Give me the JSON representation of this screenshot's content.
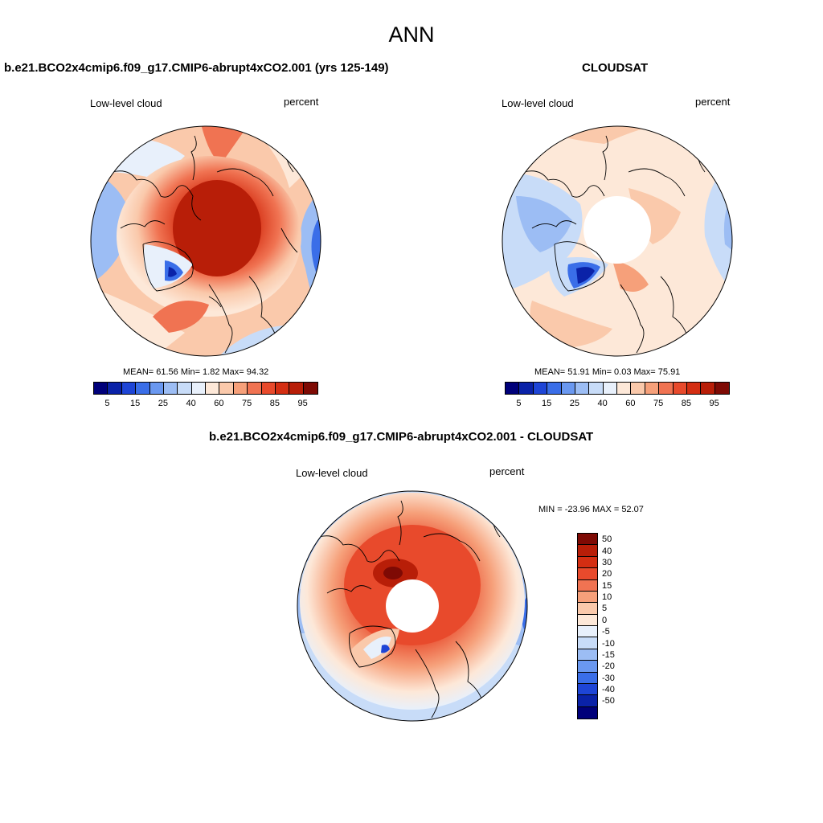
{
  "figure": {
    "title": "ANN"
  },
  "panels": [
    {
      "title": "b.e21.BCO2x4cmip6.f09_g17.CMIP6-abrupt4xCO2.001 (yrs 125-149)",
      "left_label": "Low-level cloud",
      "right_label": "percent",
      "stats": "MEAN=  61.56  Min=   1.82  Max=  94.32",
      "mean": 61.56,
      "min": 1.82,
      "max": 94.32
    },
    {
      "title": "CLOUDSAT",
      "left_label": "Low-level cloud",
      "right_label": "percent",
      "stats": "MEAN=  51.91  Min=   0.03  Max=  75.91",
      "mean": 51.91,
      "min": 0.03,
      "max": 75.91
    },
    {
      "title": "b.e21.BCO2x4cmip6.f09_g17.CMIP6-abrupt4xCO2.001 - CLOUDSAT",
      "left_label": "Low-level cloud",
      "right_label": "percent",
      "stats": "MIN = -23.96 MAX =  52.07",
      "min": -23.96,
      "max": 52.07
    }
  ],
  "abs_colorbar": {
    "colors": [
      "#00007a",
      "#0a22a8",
      "#1e45d6",
      "#3a6ee8",
      "#6a98f0",
      "#9cbdf4",
      "#c8dcf8",
      "#e8f0fb",
      "#fde8d8",
      "#fac9ab",
      "#f6a07a",
      "#f07352",
      "#e84a2c",
      "#d42e12",
      "#b81e08",
      "#7e0a04"
    ],
    "labels": [
      "5",
      "15",
      "25",
      "40",
      "60",
      "75",
      "85",
      "95"
    ]
  },
  "diff_colorbar": {
    "colors": [
      "#7e0a04",
      "#b81e08",
      "#d42e12",
      "#e84a2c",
      "#f07352",
      "#f6a07a",
      "#fac9ab",
      "#fde8d8",
      "#e8f0fb",
      "#c8dcf8",
      "#9cbdf4",
      "#6a98f0",
      "#3a6ee8",
      "#1e45d6",
      "#0a22a8",
      "#00007a"
    ],
    "labels": [
      "50",
      "40",
      "30",
      "20",
      "15",
      "10",
      "5",
      "0",
      "-5",
      "-10",
      "-15",
      "-20",
      "-30",
      "-40",
      "-50"
    ]
  }
}
